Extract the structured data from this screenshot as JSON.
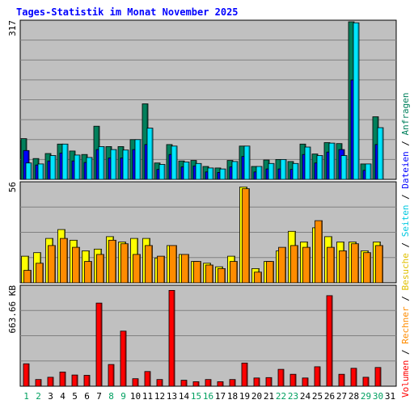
{
  "chart_data": {
    "type": "bar",
    "title": "Tages-Statistik im Monat November 2025",
    "categories": [
      "1",
      "2",
      "3",
      "4",
      "5",
      "6",
      "7",
      "8",
      "9",
      "10",
      "11",
      "12",
      "13",
      "14",
      "15",
      "16",
      "17",
      "18",
      "19",
      "20",
      "21",
      "22",
      "23",
      "24",
      "25",
      "26",
      "27",
      "28",
      "29",
      "30",
      "31"
    ],
    "weekend_days": [
      "1",
      "2",
      "8",
      "9",
      "15",
      "16",
      "22",
      "23",
      "29",
      "30"
    ],
    "panels": [
      {
        "id": "top",
        "ymax_label": "317",
        "ymax": 317,
        "series": [
          {
            "name": "Anfragen",
            "color": "#00805c",
            "values": [
              82,
              42,
              52,
              71,
              57,
              50,
              107,
              66,
              66,
              80,
              152,
              33,
              70,
              37,
              38,
              26,
              23,
              38,
              67,
              26,
              39,
              40,
              36,
              71,
              51,
              74,
              72,
              317,
              31,
              126,
              0
            ]
          },
          {
            "name": "Dateien",
            "color": "#0000ff",
            "values": [
              58,
              29,
              37,
              53,
              37,
              34,
              60,
              43,
              43,
              60,
              70,
              20,
              50,
              25,
              27,
              15,
              14,
              25,
              46,
              15,
              21,
              21,
              20,
              50,
              33,
              55,
              60,
              200,
              18,
              70,
              0
            ]
          },
          {
            "name": "Seiten",
            "color": "#00e5ff",
            "values": [
              33,
              31,
              48,
              71,
              49,
              44,
              66,
              60,
              59,
              80,
              103,
              30,
              67,
              35,
              32,
              23,
              21,
              36,
              67,
              26,
              32,
              40,
              32,
              65,
              48,
              73,
              48,
              315,
              31,
              104,
              0
            ]
          }
        ]
      },
      {
        "id": "mid",
        "ymax_label": "56",
        "ymax": 56,
        "series": [
          {
            "name": "Besuche",
            "color": "#ffff00",
            "values": [
              15,
              17,
              25,
              30,
              24,
              18,
              19,
              26,
              23,
              25,
              25,
              14,
              21,
              16,
              12,
              11,
              9,
              15,
              54,
              8,
              12,
              18,
              29,
              23,
              31,
              26,
              23,
              23,
              18,
              23,
              0
            ]
          },
          {
            "name": "Rechner",
            "color": "#ff8c00",
            "values": [
              7,
              11,
              21,
              25,
              20,
              12,
              16,
              24,
              22,
              16,
              21,
              15,
              21,
              16,
              12,
              10,
              8,
              12,
              53,
              6,
              12,
              20,
              21,
              20,
              35,
              20,
              18,
              22,
              17,
              21,
              0
            ]
          }
        ]
      },
      {
        "id": "bot",
        "ymax_label": "663.66 KB",
        "ymax": 663.66,
        "series": [
          {
            "name": "Volumen",
            "color": "#ff0000",
            "values": [
              150,
              45,
              60,
              95,
              75,
              73,
              555,
              145,
              368,
              50,
              98,
              45,
              640,
              40,
              30,
              45,
              30,
              45,
              155,
              55,
              58,
              113,
              80,
              55,
              130,
              605,
              80,
              120,
              60,
              125,
              0
            ]
          }
        ]
      }
    ],
    "legend_right": [
      "Volumen",
      "Rechner",
      "Besuche",
      "Seiten",
      "Dateien",
      "Anfragen"
    ],
    "legend_separator": " / ",
    "colors": {
      "plot_bg": "#c0c0c0",
      "grid": "#808080",
      "title": "#0000ff",
      "axis_text": "#000000",
      "weekend_text": "#00a060"
    }
  }
}
